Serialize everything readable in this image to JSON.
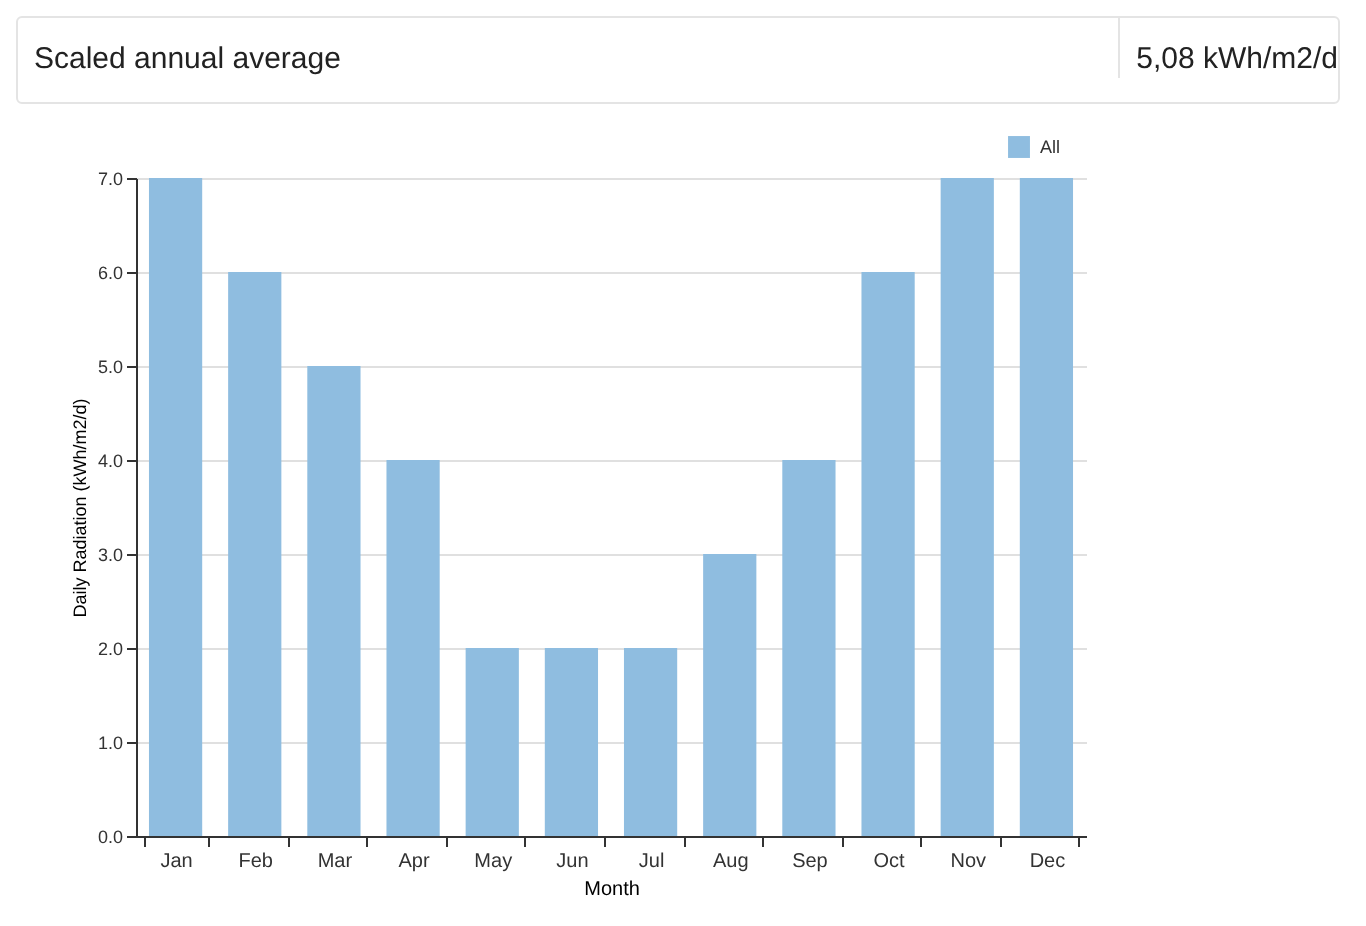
{
  "chart_data": {
    "type": "bar",
    "annotations": [
      "Scaled annual average",
      "5,08 kWh/m2/d"
    ],
    "xlabel": "Month",
    "ylabel": "Daily Radiation (kWh/m2/d)",
    "categories": [
      "Jan",
      "Feb",
      "Mar",
      "Apr",
      "May",
      "Jun",
      "Jul",
      "Aug",
      "Sep",
      "Oct",
      "Nov",
      "Dec"
    ],
    "series": [
      {
        "name": "All",
        "color": "#8fbde0",
        "values": [
          7.0,
          6.0,
          5.0,
          4.0,
          2.0,
          2.0,
          2.0,
          3.0,
          4.0,
          6.0,
          7.0,
          7.0
        ]
      }
    ],
    "ylim": [
      0,
      7.0
    ],
    "yticks": [
      {
        "value": 0,
        "label": "0.0"
      },
      {
        "value": 1,
        "label": "1.0"
      },
      {
        "value": 2,
        "label": "2.0"
      },
      {
        "value": 3,
        "label": "3.0"
      },
      {
        "value": 4,
        "label": "4.0"
      },
      {
        "value": 5,
        "label": "5.0"
      },
      {
        "value": 6,
        "label": "6.0"
      },
      {
        "value": 7,
        "label": "7.0"
      }
    ],
    "grid": "y",
    "legend": "top right"
  }
}
